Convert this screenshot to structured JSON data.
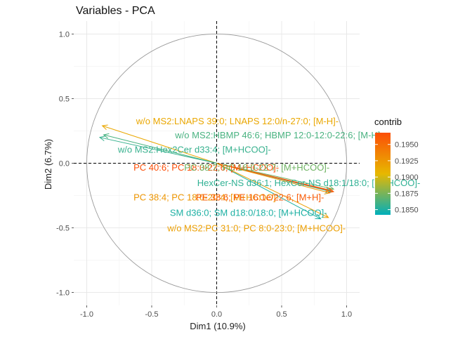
{
  "chart_data": {
    "type": "scatter",
    "title": "Variables - PCA",
    "xlabel": "Dim1 (10.9%)",
    "ylabel": "Dim2 (6.7%)",
    "xlim": [
      -1.1,
      1.1
    ],
    "ylim": [
      -1.1,
      1.1
    ],
    "xticks": [
      "-1.0",
      "-0.5",
      "0.0",
      "0.5",
      "1.0"
    ],
    "yticks": [
      "1.0",
      "0.5",
      "0.0",
      "-0.5",
      "-1.0"
    ],
    "xtick_values": [
      -1.0,
      -0.5,
      0.0,
      0.5,
      1.0
    ],
    "ytick_values": [
      1.0,
      0.5,
      0.0,
      -0.5,
      -1.0
    ],
    "grid": true,
    "unit_circle": true,
    "legend": {
      "title": "contrib",
      "position": "right",
      "ticks": [
        "0.1950",
        "0.1925",
        "0.1900",
        "0.1875",
        "0.1850"
      ],
      "tick_values": [
        0.195,
        0.1925,
        0.19,
        0.1875,
        0.185
      ],
      "range": [
        0.1842,
        0.1968
      ],
      "colors": [
        "#00AFBB",
        "#E7B800",
        "#FC4E07"
      ]
    },
    "variables": [
      {
        "label": "w/o MS2:LNAPS 39:0; LNAPS 12:0/n-27:0; [M-H]-",
        "x": -0.88,
        "y": 0.29,
        "contrib": 0.1915,
        "lx": -0.62,
        "ly": 0.33
      },
      {
        "label": "w/o MS2:HBMP 46:6; HBMP 12:0-12:0-22:6; [M-H]-",
        "x": -0.87,
        "y": 0.22,
        "contrib": 0.1862,
        "lx": -0.32,
        "ly": 0.22
      },
      {
        "label": "w/o MS2:Hex2Cer d33:4; [M+HCOO]-",
        "x": -0.9,
        "y": 0.2,
        "contrib": 0.1857,
        "lx": -0.76,
        "ly": 0.11
      },
      {
        "label": "PC 40:6; PC 18:0-22:6; [M+HCOO]-",
        "x": 0.88,
        "y": -0.21,
        "contrib": 0.1968,
        "lx": -0.64,
        "ly": -0.03
      },
      {
        "label": "PC 38:7; PC 16:0-22:7; [M+HCOO]-",
        "x": 0.9,
        "y": -0.2,
        "contrib": 0.1872,
        "lx": -0.25,
        "ly": -0.03
      },
      {
        "label": "HexCer-NS d36:1; HexCer-NS d18:1/18:0; [M+HCOO]-",
        "x": 0.88,
        "y": -0.22,
        "contrib": 0.1855,
        "lx": -0.15,
        "ly": -0.15
      },
      {
        "label": "PC 38:4; PC 18:0-20:4; [M+HCOO]-",
        "x": 0.87,
        "y": -0.23,
        "contrib": 0.1925,
        "lx": -0.64,
        "ly": -0.26
      },
      {
        "label": "PE 38:6; PE 16:1e/22:6; [M+H]-",
        "x": 0.9,
        "y": -0.22,
        "contrib": 0.196,
        "lx": -0.16,
        "ly": -0.26
      },
      {
        "label": "SM d36:0; SM d18:0/18:0; [M+HCOO]-",
        "x": 0.8,
        "y": -0.43,
        "contrib": 0.185,
        "lx": -0.36,
        "ly": -0.38
      },
      {
        "label": "w/o MS2:PC 31:0; PC 8:0-23:0; [M+HCOO]-",
        "x": 0.86,
        "y": -0.42,
        "contrib": 0.192,
        "lx": -0.38,
        "ly": -0.5
      }
    ]
  }
}
